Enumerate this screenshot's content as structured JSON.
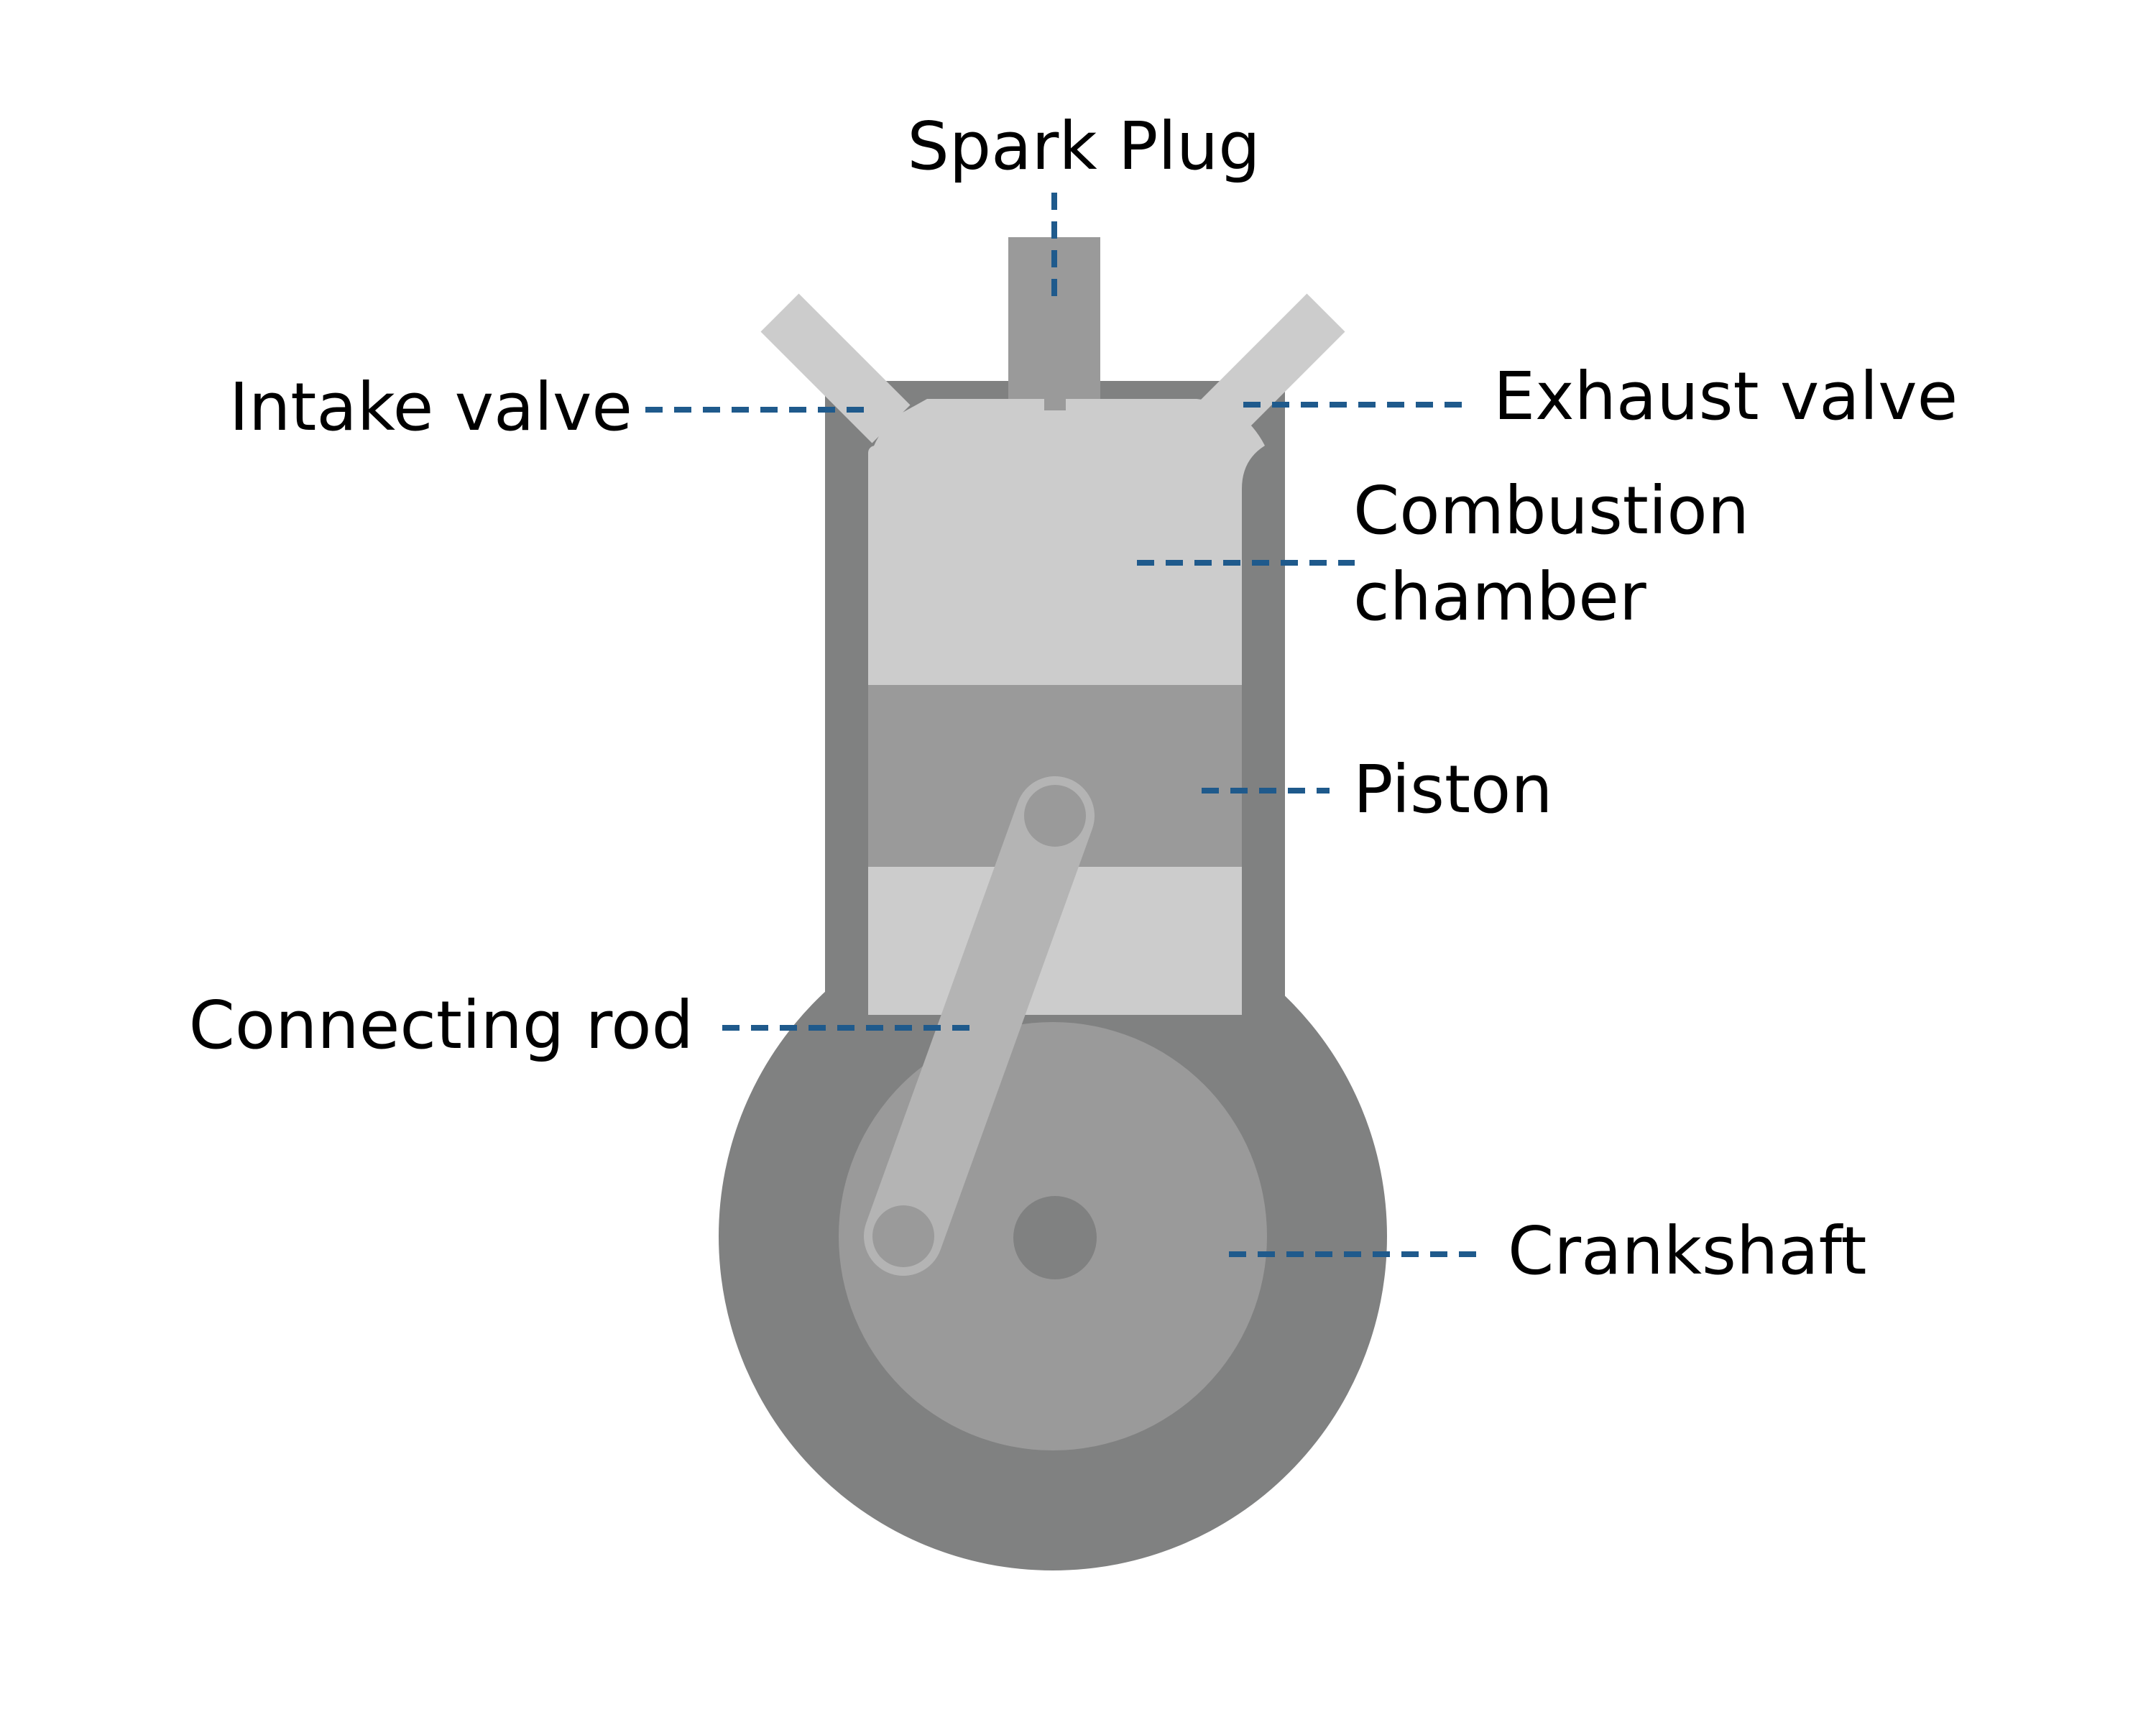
{
  "colors": {
    "background": "#ffffff",
    "housing": "#808181",
    "chamber": "#cccccc",
    "piston_band": "#9a9a9a",
    "piston_skirt": "#cccccc",
    "spark_plug": "#9a9a9a",
    "valve": "#cccccc",
    "crank_disc": "#9a9a9a",
    "crank_center": "#808181",
    "rod": "#b4b4b4",
    "rod_pin": "#9a9a9a",
    "leader_line": "#1f5a8c",
    "text": "#000000"
  },
  "labels": {
    "spark_plug": "Spark Plug",
    "intake_valve": "Intake valve",
    "exhaust_valve": "Exhaust valve",
    "combustion_chamber_line1": "Combustion",
    "combustion_chamber_line2": "chamber",
    "piston": "Piston",
    "connecting_rod": "Connecting rod",
    "crankshaft": "Crankshaft"
  }
}
